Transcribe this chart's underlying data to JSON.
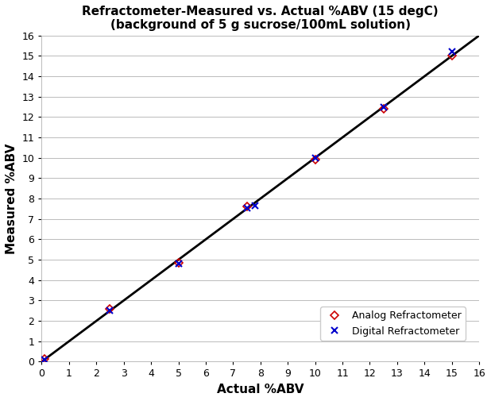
{
  "title_line1": "Refractometer-Measured vs. Actual %ABV (15 degC)",
  "title_line2": "(background of 5 g sucrose/100mL solution)",
  "xlabel": "Actual %ABV",
  "ylabel": "Measured %ABV",
  "xlim": [
    0,
    16
  ],
  "ylim": [
    0,
    16
  ],
  "xticks": [
    0,
    1,
    2,
    3,
    4,
    5,
    6,
    7,
    8,
    9,
    10,
    11,
    12,
    13,
    14,
    15,
    16
  ],
  "yticks": [
    0,
    1,
    2,
    3,
    4,
    5,
    6,
    7,
    8,
    9,
    10,
    11,
    12,
    13,
    14,
    15,
    16
  ],
  "reference_line_x": [
    0,
    16
  ],
  "reference_line_y": [
    0,
    16
  ],
  "analog_x": [
    0.1,
    2.5,
    5.0,
    7.5,
    10.0,
    12.5,
    15.0
  ],
  "analog_y": [
    0.15,
    2.6,
    4.85,
    7.6,
    9.9,
    12.4,
    15.0
  ],
  "digital_x": [
    0.1,
    2.5,
    5.0,
    7.5,
    7.8,
    10.0,
    12.5,
    15.0
  ],
  "digital_y": [
    0.1,
    2.5,
    4.8,
    7.55,
    7.65,
    10.0,
    12.5,
    15.2
  ],
  "analog_color": "#cc0000",
  "digital_color": "#0000cc",
  "line_color": "#000000",
  "background_color": "#ffffff",
  "grid_color": "#bbbbbb",
  "title_fontsize": 11,
  "axis_label_fontsize": 11,
  "tick_fontsize": 9,
  "legend_fontsize": 9
}
